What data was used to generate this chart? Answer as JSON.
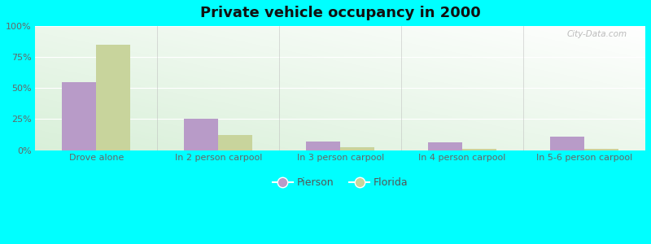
{
  "title": "Private vehicle occupancy in 2000",
  "categories": [
    "Drove alone",
    "In 2 person carpool",
    "In 3 person carpool",
    "In 4 person carpool",
    "In 5-6 person carpool"
  ],
  "pierson_values": [
    55,
    25,
    7,
    6,
    11
  ],
  "florida_values": [
    85,
    12,
    2,
    1,
    1
  ],
  "pierson_color": "#b89bc8",
  "florida_color": "#c8d49c",
  "outer_bg": "#00ffff",
  "ylim": [
    0,
    100
  ],
  "yticks": [
    0,
    25,
    50,
    75,
    100
  ],
  "ytick_labels": [
    "0%",
    "25%",
    "50%",
    "75%",
    "100%"
  ],
  "legend_pierson": "Pierson",
  "legend_florida": "Florida",
  "title_fontsize": 13,
  "tick_fontsize": 8,
  "legend_fontsize": 9,
  "bar_width": 0.28
}
